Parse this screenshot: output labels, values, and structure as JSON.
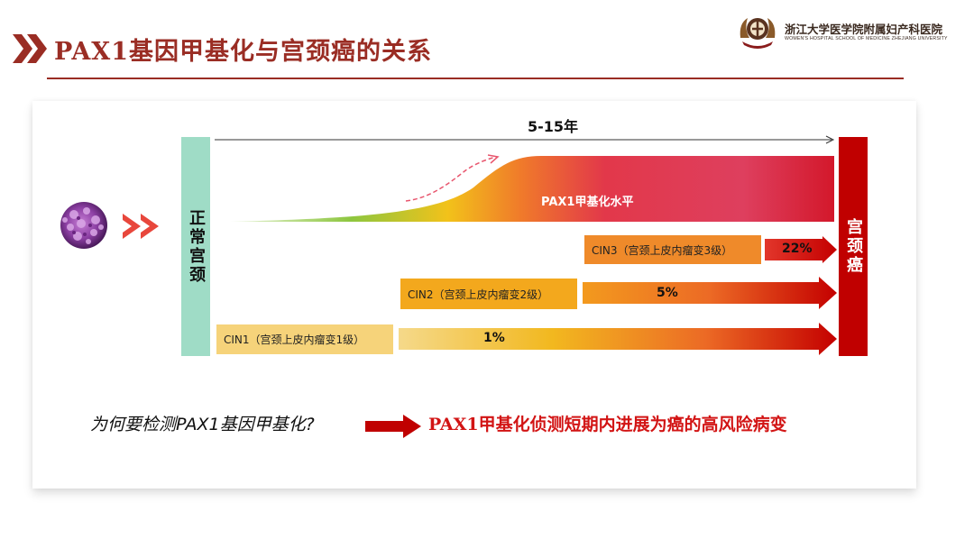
{
  "header": {
    "title": "PAX1基因甲基化与宫颈癌的关系",
    "logo_cn": "浙江大学医学院附属妇产科医院",
    "logo_en": "WOMEN'S HOSPITAL SCHOOL OF MEDICINE ZHEJIANG UNIVERSITY"
  },
  "diagram": {
    "normal": "正常宫颈",
    "cancer": "宫颈癌",
    "years": "5-15年",
    "pax_label": "PAX1甲基化水平",
    "stages": [
      {
        "label": "CIN3（宫颈上皮内瘤变3级）",
        "risk": "22%"
      },
      {
        "label": "CIN2（宫颈上皮内瘤变2级）",
        "risk": "5%"
      },
      {
        "label": "CIN1（宫颈上皮内瘤变1级）",
        "risk": "1%"
      }
    ]
  },
  "footer": {
    "question": "为何要检测PAX1基因甲基化?",
    "answer": "PAX1甲基化侦测短期内进展为癌的高风险病变"
  },
  "colors": {
    "brand": "#9a2d24",
    "cancer": "#c00000",
    "normal": "#9fdcc6",
    "answer": "#d21414"
  }
}
